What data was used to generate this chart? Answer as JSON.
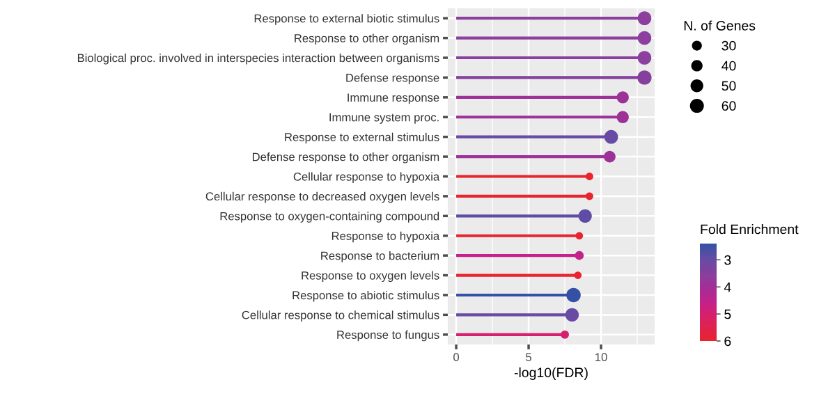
{
  "chart_data": {
    "type": "lollipop",
    "orientation": "horizontal",
    "xlabel": "-log10(FDR)",
    "categories": [
      "Response to external biotic stimulus",
      "Response to other organism",
      "Biological proc. involved in interspecies interaction between organisms",
      "Defense response",
      "Immune response",
      "Immune system proc.",
      "Response to external stimulus",
      "Defense response to other organism",
      "Cellular response to hypoxia",
      "Cellular response to decreased oxygen levels",
      "Response to oxygen-containing compound",
      "Response to hypoxia",
      "Response to bacterium",
      "Response to oxygen levels",
      "Response to abiotic stimulus",
      "Cellular response to chemical stimulus",
      "Response to fungus"
    ],
    "values": [
      13.0,
      13.0,
      13.0,
      13.0,
      11.5,
      11.5,
      10.7,
      10.6,
      9.2,
      9.2,
      8.9,
      8.5,
      8.5,
      8.4,
      8.1,
      8.0,
      7.5
    ],
    "sizes": [
      58,
      58,
      58,
      62,
      45,
      45,
      58,
      42,
      18,
      18,
      56,
      17,
      24,
      17,
      64,
      56,
      21
    ],
    "size_legend": [
      30,
      40,
      50,
      60
    ],
    "legend_title": "N. of Genes",
    "cvalues": [
      3.6,
      3.6,
      3.6,
      3.5,
      3.9,
      3.9,
      3.0,
      3.9,
      6.0,
      6.0,
      2.9,
      6.0,
      4.6,
      6.0,
      2.4,
      3.0,
      5.0
    ],
    "colors": [
      "#8c3f9e",
      "#8c3f9e",
      "#8c3f9e",
      "#853f9c",
      "#9c3198",
      "#9c3198",
      "#684ba4",
      "#9c3198",
      "#e8242e",
      "#e8242e",
      "#5f4da5",
      "#e8242e",
      "#c4218a",
      "#e8242e",
      "#3551a6",
      "#684ba4",
      "#d6206e"
    ],
    "clabel": "Fold Enrichment",
    "clim": [
      2.4,
      6.0
    ],
    "cticks": [
      3,
      4,
      5,
      6
    ],
    "xlim": [
      -0.58,
      13.7
    ],
    "xticks": [
      0,
      5,
      10
    ],
    "grid": true
  }
}
